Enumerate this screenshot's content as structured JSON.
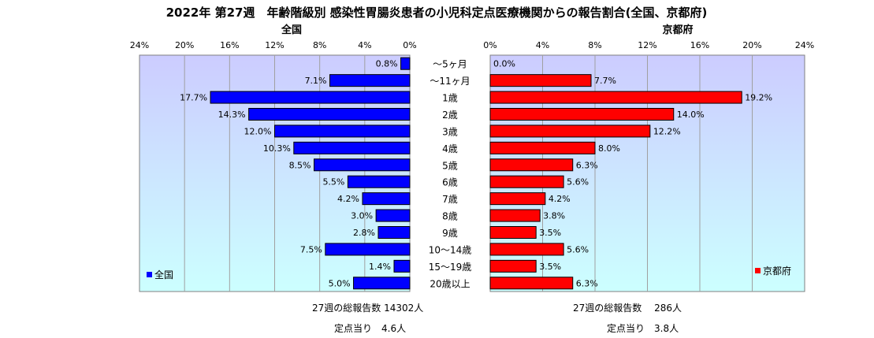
{
  "chart_data": {
    "type": "bar",
    "title": "2022年 第27週　年齢階級別 感染性胃腸炎患者の小児科定点医療機関からの報告割合(全国、京都府)",
    "categories": [
      "～5ヶ月",
      "～11ヶ月",
      "1歳",
      "2歳",
      "3歳",
      "4歳",
      "5歳",
      "6歳",
      "7歳",
      "8歳",
      "9歳",
      "10～14歳",
      "15～19歳",
      "20歳以上"
    ],
    "xlim": [
      0,
      24
    ],
    "ticks": [
      "0%",
      "4%",
      "8%",
      "12%",
      "16%",
      "20%",
      "24%"
    ],
    "tick_values": [
      0,
      4,
      8,
      12,
      16,
      20,
      24
    ],
    "series": [
      {
        "name": "全国",
        "color": "#0000ff",
        "values": [
          0.8,
          7.1,
          17.7,
          14.3,
          12.0,
          10.3,
          8.5,
          5.5,
          4.2,
          3.0,
          2.8,
          7.5,
          1.4,
          5.0
        ],
        "labels": [
          "0.8%",
          "7.1%",
          "17.7%",
          "14.3%",
          "12.0%",
          "10.3%",
          "8.5%",
          "5.5%",
          "4.2%",
          "3.0%",
          "2.8%",
          "7.5%",
          "1.4%",
          "5.0%"
        ]
      },
      {
        "name": "京都府",
        "color": "#ff0000",
        "values": [
          0.0,
          7.7,
          19.2,
          14.0,
          12.2,
          8.0,
          6.3,
          5.6,
          4.2,
          3.8,
          3.5,
          5.6,
          3.5,
          6.3
        ],
        "labels": [
          "0.0%",
          "7.7%",
          "19.2%",
          "14.0%",
          "12.2%",
          "8.0%",
          "6.3%",
          "5.6%",
          "4.2%",
          "3.8%",
          "3.5%",
          "5.6%",
          "3.5%",
          "6.3%"
        ]
      }
    ],
    "legend": [
      {
        "name": "全国",
        "color": "#0000ff",
        "placement": "bottom-left"
      },
      {
        "name": "京都府",
        "color": "#ff0000",
        "placement": "bottom-right"
      }
    ],
    "grid": true
  },
  "footer": {
    "national_total": "27週の総報告数 14302人",
    "national_per_site": "定点当り　4.6人",
    "kyoto_total": "27週の総報告数　 286人",
    "kyoto_per_site": "定点当り　3.8人"
  }
}
